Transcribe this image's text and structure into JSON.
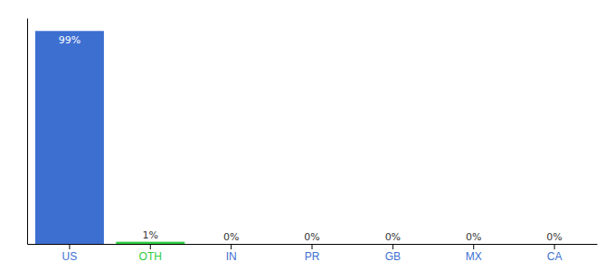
{
  "chart_data": {
    "type": "bar",
    "categories": [
      "US",
      "OTH",
      "IN",
      "PR",
      "GB",
      "MX",
      "CA"
    ],
    "values": [
      99,
      1,
      0,
      0,
      0,
      0,
      0
    ],
    "value_labels": [
      "99%",
      "1%",
      "0%",
      "0%",
      "0%",
      "0%",
      "0%"
    ],
    "colors": [
      "#3d6fd1",
      "#2ecc40",
      "#3d6fd1",
      "#3d6fd1",
      "#3d6fd1",
      "#3d6fd1",
      "#3d6fd1"
    ],
    "ylim": [
      0,
      105
    ],
    "data_labels": true,
    "tick_labels": "x",
    "grid": false
  }
}
